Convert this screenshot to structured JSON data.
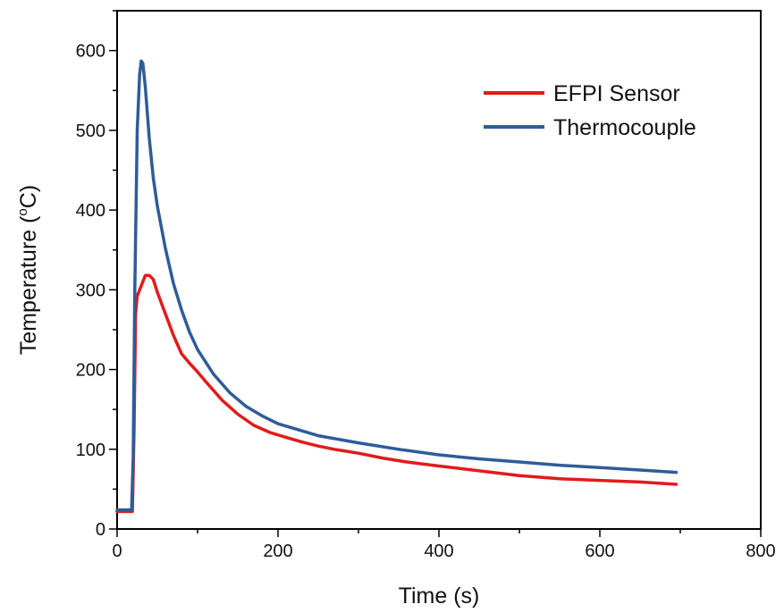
{
  "chart_data": {
    "type": "line",
    "title": "",
    "xlabel": "Time (s)",
    "ylabel_main": "Temperature (",
    "ylabel_sup": "o",
    "ylabel_tail": "C)",
    "xlim": [
      0,
      800
    ],
    "ylim": [
      0,
      650
    ],
    "xticks": [
      "0",
      "200",
      "400",
      "600",
      "800"
    ],
    "yticks": [
      "0",
      "100",
      "200",
      "300",
      "400",
      "500",
      "600"
    ],
    "grid": false,
    "legend_position": "top-right",
    "series": [
      {
        "name": "EFPI Sensor",
        "color": "#e31a1c",
        "x": [
          0,
          10,
          19,
          21,
          23,
          25,
          30,
          35,
          40,
          45,
          50,
          60,
          70,
          80,
          90,
          100,
          110,
          130,
          150,
          170,
          190,
          210,
          230,
          250,
          270,
          300,
          330,
          360,
          400,
          450,
          500,
          550,
          600,
          650,
          695
        ],
        "y": [
          22,
          22,
          22,
          120,
          270,
          292,
          305,
          318,
          318,
          313,
          297,
          270,
          243,
          220,
          208,
          197,
          185,
          162,
          144,
          130,
          121,
          115,
          109,
          104,
          100,
          95,
          89,
          84,
          79,
          73,
          67,
          63,
          61,
          59,
          56
        ]
      },
      {
        "name": "Thermocouple",
        "color": "#2e5c99",
        "x": [
          0,
          10,
          18,
          20,
          22,
          25,
          28,
          30,
          32,
          35,
          40,
          45,
          50,
          60,
          70,
          80,
          90,
          100,
          120,
          140,
          160,
          180,
          200,
          250,
          300,
          350,
          400,
          450,
          500,
          550,
          600,
          650,
          695
        ],
        "y": [
          24,
          24,
          24,
          90,
          300,
          500,
          570,
          587,
          584,
          555,
          490,
          440,
          405,
          352,
          308,
          275,
          247,
          225,
          194,
          171,
          154,
          142,
          132,
          117,
          108,
          100,
          93,
          88,
          84,
          80,
          77,
          74,
          71
        ]
      }
    ]
  }
}
